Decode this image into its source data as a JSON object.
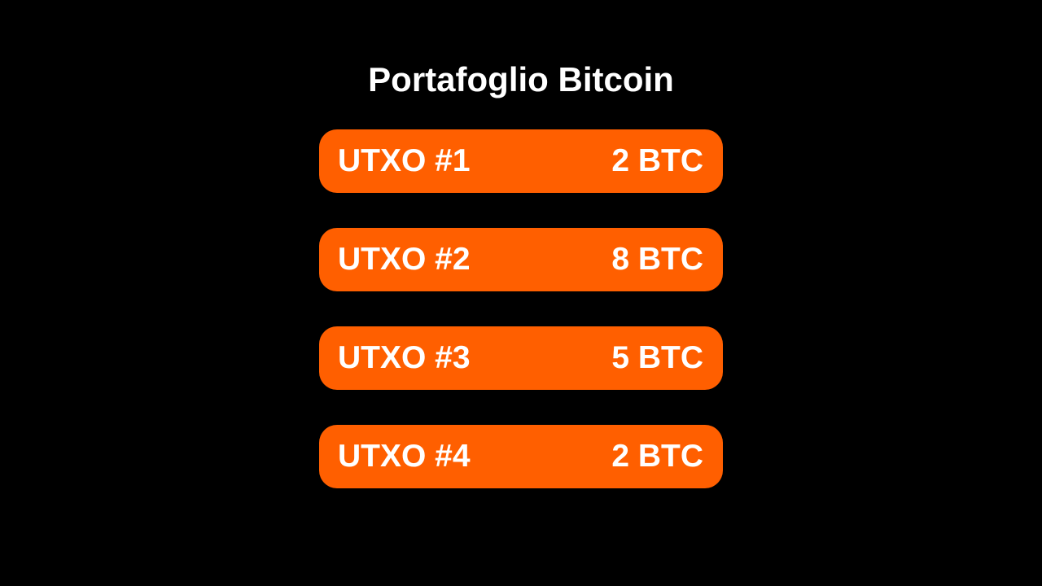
{
  "title": "Portafoglio Bitcoin",
  "accent_color": "#ff5f00",
  "background_color": "#000000",
  "utxos": [
    {
      "label": "UTXO #1",
      "amount": "2 BTC"
    },
    {
      "label": "UTXO #2",
      "amount": "8 BTC"
    },
    {
      "label": "UTXO #3",
      "amount": "5 BTC"
    },
    {
      "label": "UTXO #4",
      "amount": "2 BTC"
    }
  ]
}
